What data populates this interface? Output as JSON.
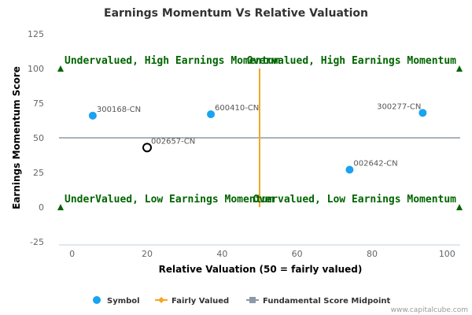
{
  "chart_data": {
    "type": "scatter",
    "title": "Earnings Momentum Vs Relative Valuation",
    "xlabel": "Relative Valuation (50 = fairly valued)",
    "ylabel": "Earnings Momentum Score",
    "xlim": [
      -3.5,
      103.5
    ],
    "ylim": [
      -25,
      125
    ],
    "xticks": [
      0,
      20,
      40,
      60,
      80,
      100
    ],
    "yticks": [
      -25,
      0,
      25,
      50,
      75,
      100,
      125
    ],
    "grid": false,
    "legend_position": "bottom",
    "points": [
      {
        "label": "300168-CN",
        "x": 5.5,
        "y": 66,
        "style": "filled"
      },
      {
        "label": "600410-CN",
        "x": 37,
        "y": 67,
        "style": "filled"
      },
      {
        "label": "300277-CN",
        "x": 93.5,
        "y": 68,
        "style": "filled"
      },
      {
        "label": "002657-CN",
        "x": 20,
        "y": 43,
        "style": "hollow"
      },
      {
        "label": "002642-CN",
        "x": 74,
        "y": 27,
        "style": "filled"
      }
    ],
    "fairly_valued_line": {
      "x": 50,
      "y_range": [
        0,
        100
      ]
    },
    "midpoint_line": {
      "y": 50
    },
    "quadrant_labels": [
      {
        "text": "Undervalued, High Earnings Momentum",
        "x": -3.5,
        "y": 100,
        "anchor": "start"
      },
      {
        "text": "Overvalued, High Earnings Momentum",
        "x": 103.5,
        "y": 100,
        "anchor": "end"
      },
      {
        "text": "UnderValued, Low Earnings Momentum",
        "x": -3.5,
        "y": 0,
        "anchor": "start"
      },
      {
        "text": "Overvalued, Low Earnings Momentum",
        "x": 103.5,
        "y": 0,
        "anchor": "end"
      }
    ],
    "legend": [
      {
        "name": "Symbol",
        "marker": "circle"
      },
      {
        "name": "Fairly Valued",
        "marker": "diamond-line"
      },
      {
        "name": "Fundamental Score Midpoint",
        "marker": "square-line"
      }
    ],
    "credit": "www.capitalcube.com"
  },
  "colors": {
    "point": "#1aa3f0",
    "hollow_stroke": "#000000",
    "fairly_valued": "#f5a623",
    "midpoint": "#8d99a6",
    "quadrant_text": "#006400",
    "triangle": "#006400",
    "axis": "#c0d0e0"
  }
}
